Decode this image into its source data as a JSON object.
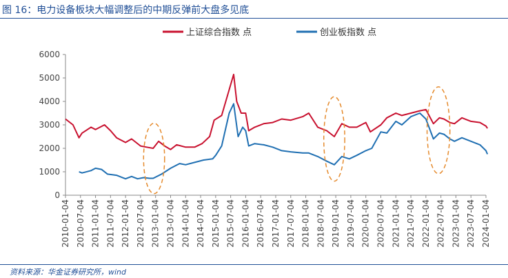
{
  "figure_title": "图 16：电力设备板块大幅调整后的中期反弹前大盘多见底",
  "source_note": "资料来源：华金证券研究所，wind",
  "chart_data": {
    "type": "line",
    "title": "",
    "xlabel": "",
    "ylabel": "",
    "ylim": [
      0,
      6000
    ],
    "yticks": [
      0,
      1000,
      2000,
      3000,
      4000,
      5000,
      6000
    ],
    "grid": false,
    "legend_position": "top-center",
    "x_tick_labels": [
      "2010-01-04",
      "2010-07-04",
      "2011-01-04",
      "2011-07-04",
      "2012-01-04",
      "2012-07-04",
      "2013-01-04",
      "2013-07-04",
      "2014-01-04",
      "2014-07-04",
      "2015-01-04",
      "2015-07-04",
      "2016-01-04",
      "2016-07-04",
      "2017-01-04",
      "2017-07-04",
      "2018-01-04",
      "2018-07-04",
      "2019-01-04",
      "2019-07-04",
      "2020-01-04",
      "2020-07-04",
      "2021-01-04",
      "2021-07-04",
      "2022-01-04",
      "2022-07-04",
      "2023-01-04",
      "2023-07-04",
      "2024-01-04"
    ],
    "series": [
      {
        "name": "上证综合指数 点",
        "color": "#c8102e",
        "x": [
          2010.0,
          2010.25,
          2010.45,
          2010.55,
          2010.85,
          2011.0,
          2011.3,
          2011.5,
          2011.7,
          2012.0,
          2012.2,
          2012.5,
          2012.7,
          2012.92,
          2013.1,
          2013.3,
          2013.5,
          2013.7,
          2014.0,
          2014.3,
          2014.55,
          2014.8,
          2014.95,
          2015.2,
          2015.45,
          2015.6,
          2015.7,
          2015.85,
          2016.0,
          2016.1,
          2016.3,
          2016.6,
          2016.9,
          2017.2,
          2017.5,
          2017.9,
          2018.1,
          2018.4,
          2018.7,
          2018.95,
          2019.2,
          2019.45,
          2019.7,
          2020.0,
          2020.15,
          2020.5,
          2020.7,
          2021.0,
          2021.2,
          2021.5,
          2021.8,
          2022.0,
          2022.25,
          2022.45,
          2022.6,
          2022.8,
          2022.95,
          2023.2,
          2023.5,
          2023.8,
          2024.0,
          2024.05
        ],
        "values": [
          3250,
          3000,
          2450,
          2650,
          2900,
          2800,
          3000,
          2750,
          2450,
          2250,
          2400,
          2100,
          2050,
          2000,
          2300,
          2100,
          1950,
          2150,
          2050,
          2050,
          2200,
          2500,
          3200,
          3400,
          4500,
          5150,
          4000,
          3500,
          3500,
          2750,
          2900,
          3050,
          3100,
          3250,
          3200,
          3350,
          3500,
          2900,
          2750,
          2500,
          3050,
          2900,
          2900,
          3100,
          2700,
          3000,
          3300,
          3500,
          3400,
          3500,
          3600,
          3650,
          3050,
          3300,
          3250,
          3100,
          3050,
          3300,
          3150,
          3100,
          2950,
          2850
        ]
      },
      {
        "name": "创业板指数 点",
        "color": "#1f6fb2",
        "x": [
          2010.45,
          2010.55,
          2010.85,
          2011.0,
          2011.2,
          2011.4,
          2011.7,
          2012.0,
          2012.2,
          2012.4,
          2012.6,
          2012.8,
          2012.92,
          2013.2,
          2013.5,
          2013.8,
          2014.0,
          2014.3,
          2014.6,
          2014.9,
          2015.0,
          2015.2,
          2015.45,
          2015.6,
          2015.75,
          2015.9,
          2016.0,
          2016.1,
          2016.3,
          2016.6,
          2016.9,
          2017.2,
          2017.5,
          2017.9,
          2018.1,
          2018.4,
          2018.7,
          2018.95,
          2019.2,
          2019.45,
          2019.7,
          2020.0,
          2020.2,
          2020.5,
          2020.7,
          2021.0,
          2021.2,
          2021.5,
          2021.8,
          2022.0,
          2022.25,
          2022.45,
          2022.6,
          2022.8,
          2022.95,
          2023.2,
          2023.5,
          2023.8,
          2024.0,
          2024.05
        ],
        "values": [
          1000,
          950,
          1050,
          1150,
          1100,
          900,
          850,
          700,
          800,
          700,
          750,
          720,
          720,
          900,
          1150,
          1350,
          1300,
          1400,
          1500,
          1550,
          1700,
          2100,
          3500,
          3900,
          2500,
          2900,
          2750,
          2100,
          2200,
          2150,
          2050,
          1900,
          1850,
          1800,
          1800,
          1650,
          1450,
          1300,
          1650,
          1550,
          1700,
          1900,
          2000,
          2700,
          2650,
          3150,
          3000,
          3350,
          3500,
          3250,
          2400,
          2650,
          2600,
          2400,
          2300,
          2450,
          2300,
          2150,
          1900,
          1750
        ]
      }
    ],
    "annotations": [
      {
        "type": "ellipse",
        "style": "dashed",
        "color": "#e58a2c",
        "x": 2012.95,
        "y": 1570,
        "rx_years": 0.35,
        "ry_units": 1500
      },
      {
        "type": "ellipse",
        "style": "dashed",
        "color": "#e58a2c",
        "x": 2018.95,
        "y": 2400,
        "rx_years": 0.35,
        "ry_units": 1800
      },
      {
        "type": "ellipse",
        "style": "dashed",
        "color": "#e58a2c",
        "x": 2022.42,
        "y": 2770,
        "rx_years": 0.38,
        "ry_units": 1850
      }
    ]
  }
}
